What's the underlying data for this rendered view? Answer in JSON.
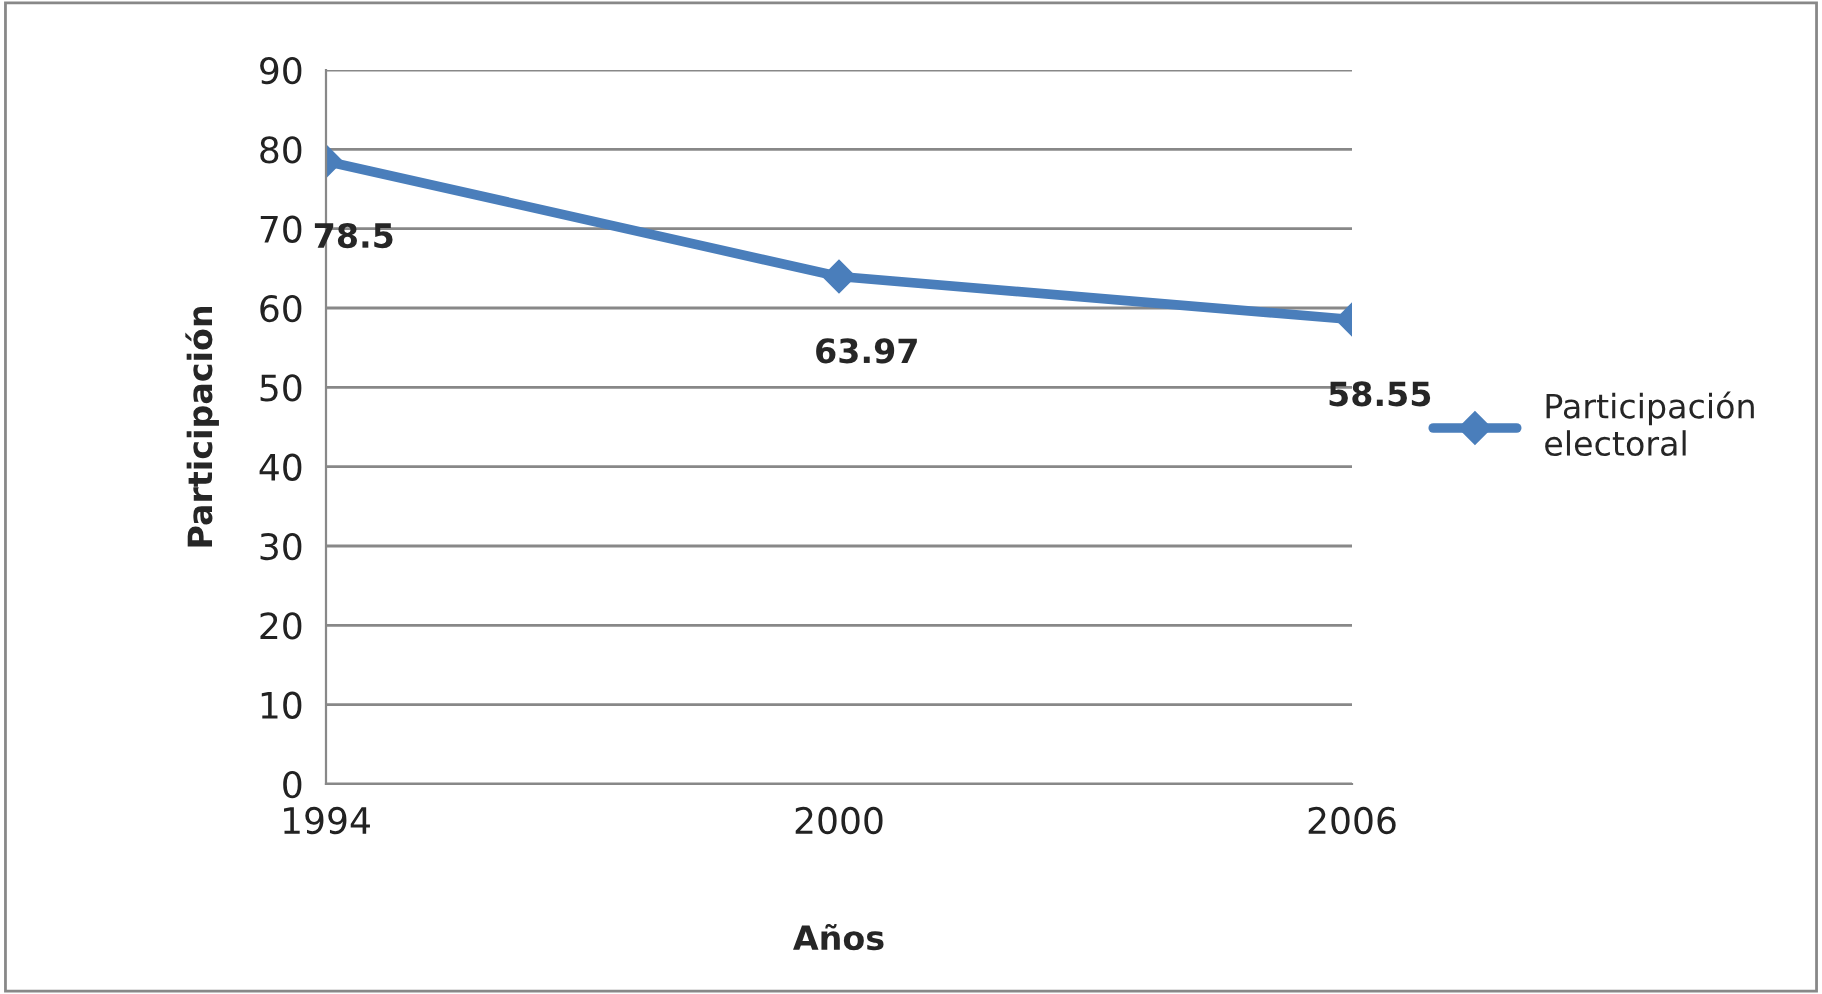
{
  "chart_data": {
    "type": "line",
    "xlabel": "Años",
    "ylabel": "Participación",
    "x": [
      1994,
      2000,
      2006
    ],
    "series": [
      {
        "name": "Participación\nelectoral",
        "color": "#4a7ebb",
        "values": [
          78.5,
          63.97,
          58.55
        ]
      }
    ],
    "xlim": [
      1994,
      2006
    ],
    "xticks": [
      1994,
      2000,
      2006
    ],
    "ylim": [
      0,
      90
    ],
    "yticks": [
      0,
      10,
      20,
      30,
      40,
      50,
      60,
      70,
      80,
      90
    ],
    "grid": "y",
    "legend": "right",
    "marker": "diamond",
    "line_style": "solid",
    "data_labels": true
  }
}
